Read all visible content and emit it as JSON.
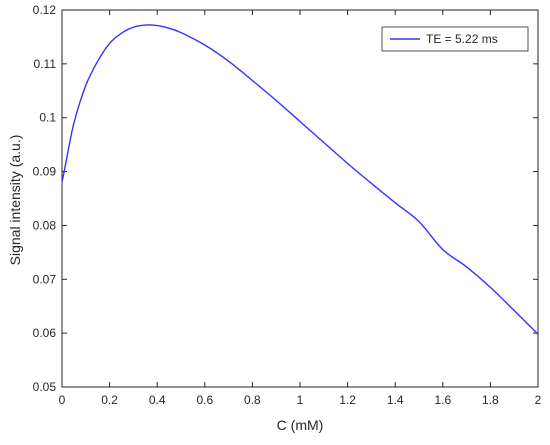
{
  "chart_data": {
    "type": "line",
    "title": "",
    "xlabel": "C (mM)",
    "ylabel": "Signal intensity (a.u.)",
    "xlim": [
      0,
      2
    ],
    "ylim": [
      0.05,
      0.12
    ],
    "xticks": [
      0,
      0.2,
      0.4,
      0.6,
      0.8,
      1,
      1.2,
      1.4,
      1.6,
      1.8,
      2
    ],
    "xtick_labels": [
      "0",
      "0.2",
      "0.4",
      "0.6",
      "0.8",
      "1",
      "1.2",
      "1.4",
      "1.6",
      "1.8",
      "2"
    ],
    "yticks": [
      0.05,
      0.06,
      0.07,
      0.08,
      0.09,
      0.1,
      0.11,
      0.12
    ],
    "ytick_labels": [
      "0.05",
      "0.06",
      "0.07",
      "0.08",
      "0.09",
      "0.1",
      "0.11",
      "0.12"
    ],
    "grid": false,
    "legend_position": "top-right",
    "series": [
      {
        "name": "TE = 5.22 ms",
        "color": "#3333ff",
        "x": [
          0,
          0.02,
          0.05,
          0.1,
          0.15,
          0.2,
          0.25,
          0.3,
          0.35,
          0.4,
          0.45,
          0.5,
          0.6,
          0.7,
          0.8,
          0.9,
          1.0,
          1.1,
          1.2,
          1.3,
          1.4,
          1.5,
          1.6,
          1.7,
          1.8,
          1.9,
          2.0
        ],
        "y": [
          0.088,
          0.0925,
          0.099,
          0.106,
          0.1105,
          0.1138,
          0.1157,
          0.1168,
          0.1172,
          0.1171,
          0.1166,
          0.1158,
          0.1135,
          0.1105,
          0.1069,
          0.1032,
          0.0993,
          0.0954,
          0.0915,
          0.0878,
          0.0842,
          0.0807,
          0.0755,
          0.0723,
          0.0685,
          0.0642,
          0.0598
        ]
      }
    ]
  }
}
